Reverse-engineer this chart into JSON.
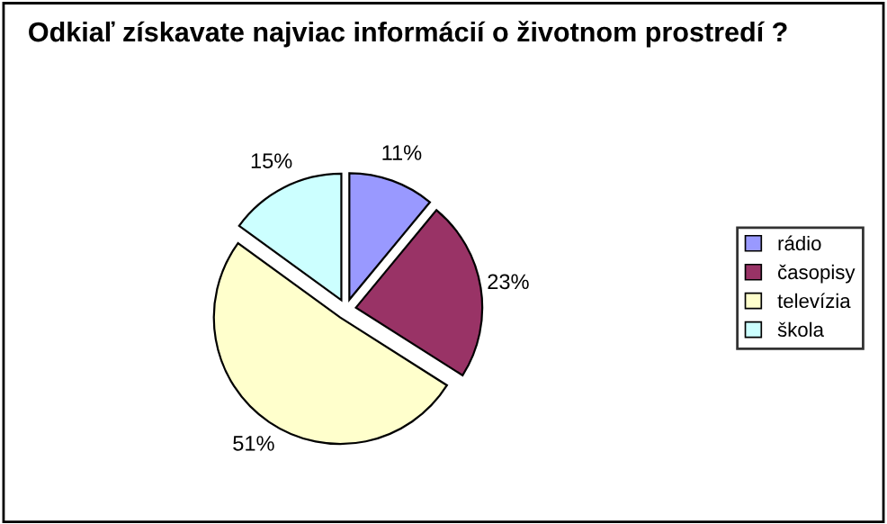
{
  "chart_data": {
    "type": "pie",
    "title": "Odkiaľ získavate najviac informácií o životnom prostredí ?",
    "categories": [
      "rádio",
      "časopisy",
      "televízia",
      "škola"
    ],
    "values": [
      11,
      23,
      51,
      15
    ],
    "colors": [
      "#9999ff",
      "#993366",
      "#ffffcc",
      "#ccffff"
    ],
    "value_labels": [
      "11%",
      "23%",
      "51%",
      "15%"
    ],
    "legend": "right"
  }
}
